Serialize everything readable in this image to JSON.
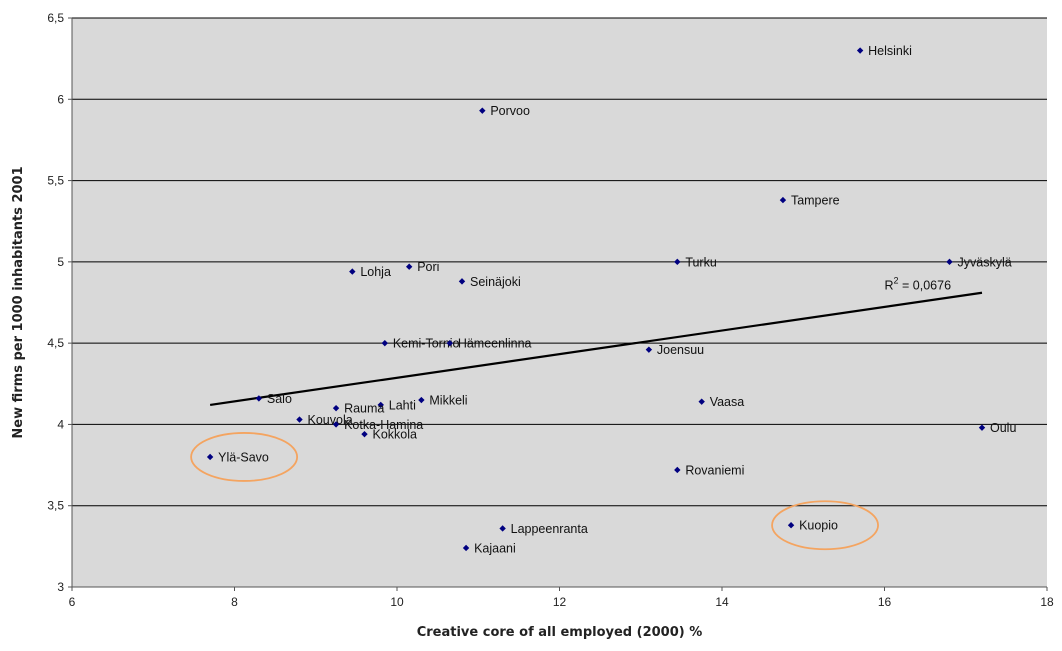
{
  "chart_data": {
    "type": "scatter",
    "title": "",
    "xlabel": "Creative core of all employed (2000) %",
    "ylabel": "New firms per 1000 inhabitants 2001",
    "xlim": [
      6,
      18
    ],
    "ylim": [
      3,
      6.5
    ],
    "x_ticks": [
      6,
      8,
      10,
      12,
      14,
      16,
      18
    ],
    "y_ticks": [
      3,
      3.5,
      4,
      4.5,
      5,
      5.5,
      6,
      6.5
    ],
    "x_tick_labels": [
      "6",
      "8",
      "10",
      "12",
      "14",
      "16",
      "18"
    ],
    "y_tick_labels": [
      "3",
      "3,5",
      "4",
      "4,5",
      "5",
      "5,5",
      "6",
      "6,5"
    ],
    "grid": "horizontal",
    "plot_background": "#d9d9d9",
    "marker_color": "#000080",
    "highlight_color": "#f4a460",
    "trendline": {
      "type": "linear",
      "x": [
        7.7,
        17.2
      ],
      "y": [
        4.12,
        4.81
      ],
      "r2_base": "R",
      "r2_sup": "2",
      "r2_rest": " = 0,0676"
    },
    "points": [
      {
        "label": "Helsinki",
        "x": 15.7,
        "y": 6.3
      },
      {
        "label": "Porvoo",
        "x": 11.05,
        "y": 5.93
      },
      {
        "label": "Tampere",
        "x": 14.75,
        "y": 5.38
      },
      {
        "label": "Turku",
        "x": 13.45,
        "y": 5.0
      },
      {
        "label": "Jyväskylä",
        "x": 16.8,
        "y": 5.0
      },
      {
        "label": "Pori",
        "x": 10.15,
        "y": 4.97
      },
      {
        "label": "Lohja",
        "x": 9.45,
        "y": 4.94
      },
      {
        "label": "Seinäjoki",
        "x": 10.8,
        "y": 4.88
      },
      {
        "label": "Kemi-Tornio",
        "x": 9.85,
        "y": 4.5
      },
      {
        "label": "Hämeenlinna",
        "x": 10.65,
        "y": 4.5
      },
      {
        "label": "Joensuu",
        "x": 13.1,
        "y": 4.46
      },
      {
        "label": "Salo",
        "x": 8.3,
        "y": 4.16
      },
      {
        "label": "Mikkeli",
        "x": 10.3,
        "y": 4.15
      },
      {
        "label": "Lahti",
        "x": 9.8,
        "y": 4.12
      },
      {
        "label": "Rauma",
        "x": 9.25,
        "y": 4.1
      },
      {
        "label": "Vaasa",
        "x": 13.75,
        "y": 4.14
      },
      {
        "label": "Kouvola",
        "x": 8.8,
        "y": 4.03
      },
      {
        "label": "Kotka-Hamina",
        "x": 9.25,
        "y": 4.0
      },
      {
        "label": "Kokkola",
        "x": 9.6,
        "y": 3.94
      },
      {
        "label": "Oulu",
        "x": 17.2,
        "y": 3.98
      },
      {
        "label": "Ylä-Savo",
        "x": 7.7,
        "y": 3.8,
        "highlight": true
      },
      {
        "label": "Rovaniemi",
        "x": 13.45,
        "y": 3.72
      },
      {
        "label": "Kuopio",
        "x": 14.85,
        "y": 3.38,
        "highlight": true
      },
      {
        "label": "Lappeenranta",
        "x": 11.3,
        "y": 3.36
      },
      {
        "label": "Kajaani",
        "x": 10.85,
        "y": 3.24
      }
    ]
  }
}
